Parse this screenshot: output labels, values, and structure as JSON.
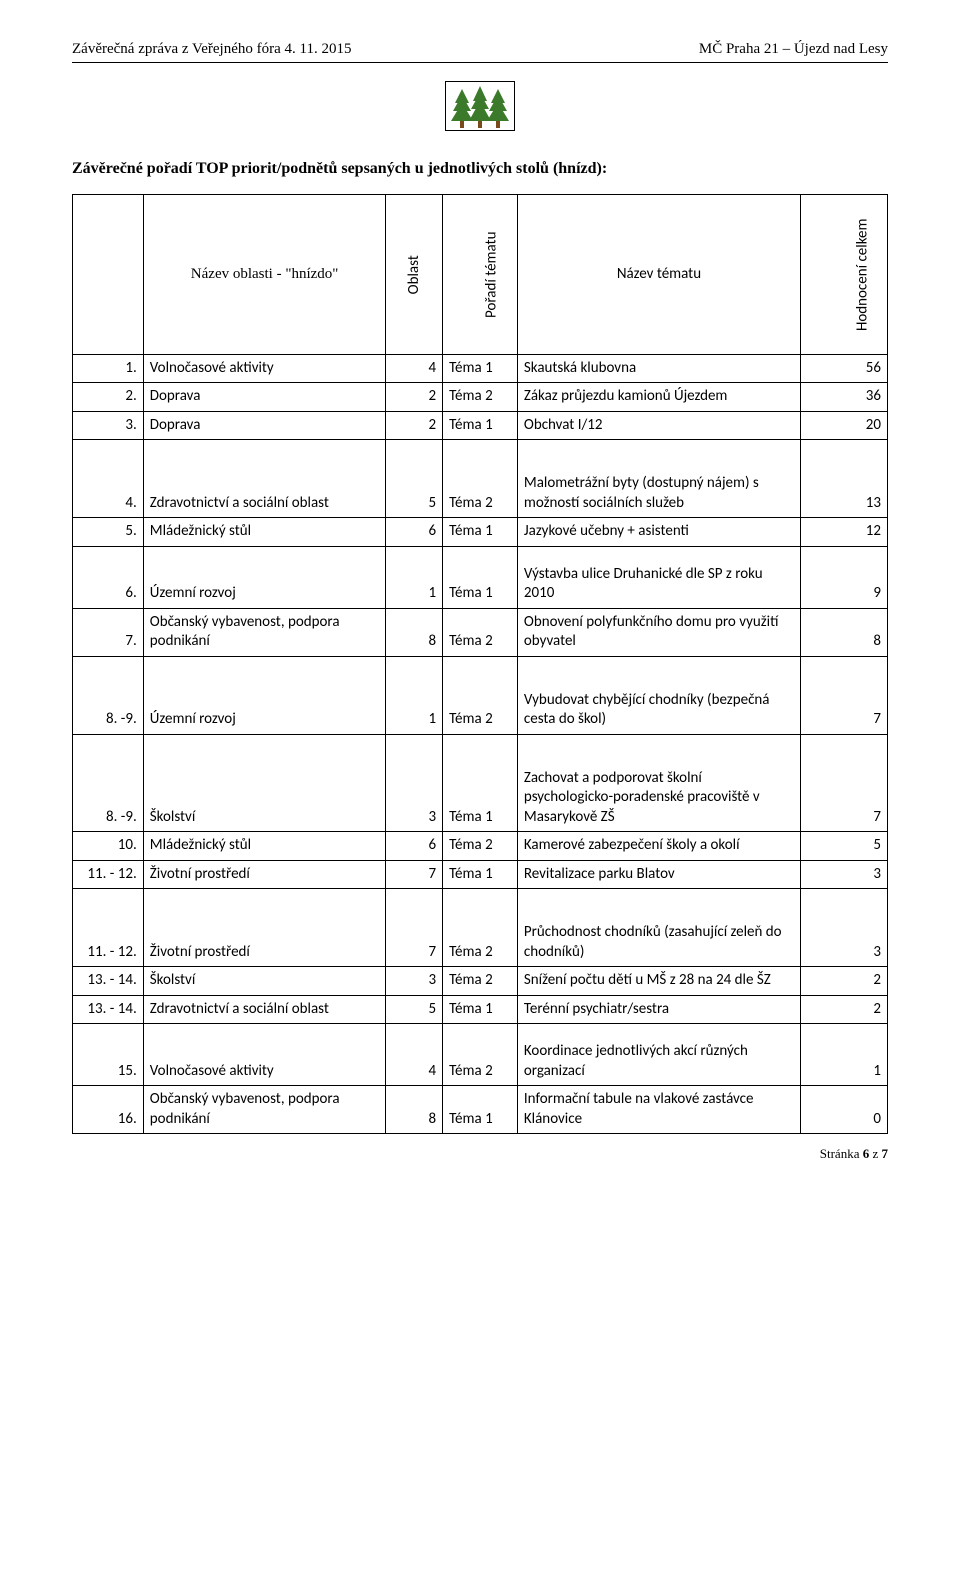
{
  "header": {
    "left": "Závěrečná zpráva z Veřejného fóra 4. 11. 2015",
    "right": "MČ Praha 21 – Újezd nad Lesy"
  },
  "title": "Závěrečné pořadí TOP priorit/podnětů sepsaných u jednotlivých stolů (hnízd):",
  "columns": {
    "name": "Název oblasti - \"hnízdo\"",
    "area": "Oblast",
    "topic_order": "Pořadí tématu",
    "topic_name": "Název tématu",
    "rating": "Hodnocení celkem"
  },
  "rows": [
    {
      "n": "1.",
      "name": "Volnočasové aktivity",
      "area": "4",
      "ord": "Téma 1",
      "topic": "Skautská klubovna",
      "rating": "56",
      "h": ""
    },
    {
      "n": "2.",
      "name": "Doprava",
      "area": "2",
      "ord": "Téma 2",
      "topic": "Zákaz průjezdu kamionů Újezdem",
      "rating": "36",
      "h": ""
    },
    {
      "n": "3.",
      "name": "Doprava",
      "area": "2",
      "ord": "Téma 1",
      "topic": "Obchvat I/12",
      "rating": "20",
      "h": ""
    },
    {
      "n": "4.",
      "name": "Zdravotnictví a sociální oblast",
      "area": "5",
      "ord": "Téma 2",
      "topic": "Malometrážní byty (dostupný nájem) s možností sociálních služeb",
      "rating": "13",
      "h": "tall"
    },
    {
      "n": "5.",
      "name": "Mládežnický stůl",
      "area": "6",
      "ord": "Téma 1",
      "topic": "Jazykové učebny + asistenti",
      "rating": "12",
      "h": ""
    },
    {
      "n": "6.",
      "name": "Územní rozvoj",
      "area": "1",
      "ord": "Téma 1",
      "topic": "Výstavba ulice Druhanické dle SP z roku 2010",
      "rating": "9",
      "h": "med"
    },
    {
      "n": "7.",
      "name": "Občanský vybavenost, podpora podnikání",
      "area": "8",
      "ord": "Téma 2",
      "topic": "Obnovení polyfunkčního domu pro využití obyvatel",
      "rating": "8",
      "h": ""
    },
    {
      "n": "8. -9.",
      "name": "Územní rozvoj",
      "area": "1",
      "ord": "Téma 2",
      "topic": "Vybudovat chybějící chodníky (bezpečná cesta do škol)",
      "rating": "7",
      "h": "tall"
    },
    {
      "n": "8. -9.",
      "name": "Školství",
      "area": "3",
      "ord": "Téma 1",
      "topic": "Zachovat a podporovat školní psychologicko-poradenské pracoviště v Masarykově ZŠ",
      "rating": "7",
      "h": "tall"
    },
    {
      "n": "10.",
      "name": "Mládežnický stůl",
      "area": "6",
      "ord": "Téma 2",
      "topic": "Kamerové zabezpečení školy a okolí",
      "rating": "5",
      "h": ""
    },
    {
      "n": "11. - 12.",
      "name": "Životní prostředí",
      "area": "7",
      "ord": "Téma 1",
      "topic": "Revitalizace parku Blatov",
      "rating": "3",
      "h": ""
    },
    {
      "n": "11. - 12.",
      "name": "Životní prostředí",
      "area": "7",
      "ord": "Téma 2",
      "topic": "Průchodnost chodníků (zasahující zeleň do chodníků)",
      "rating": "3",
      "h": "tall"
    },
    {
      "n": "13. - 14.",
      "name": "Školství",
      "area": "3",
      "ord": "Téma 2",
      "topic": "Snížení počtu dětí u MŠ z 28 na 24 dle ŠZ",
      "rating": "2",
      "h": ""
    },
    {
      "n": "13. - 14.",
      "name": "Zdravotnictví a sociální oblast",
      "area": "5",
      "ord": "Téma 1",
      "topic": "Terénní psychiatr/sestra",
      "rating": "2",
      "h": ""
    },
    {
      "n": "15.",
      "name": "Volnočasové aktivity",
      "area": "4",
      "ord": "Téma 2",
      "topic": "Koordinace jednotlivých akcí různých organizací",
      "rating": "1",
      "h": "med"
    },
    {
      "n": "16.",
      "name": "Občanský vybavenost, podpora podnikání",
      "area": "8",
      "ord": "Téma 1",
      "topic": "Informační tabule na vlakové zastávce Klánovice",
      "rating": "0",
      "h": ""
    }
  ],
  "footer": {
    "label": "Stránka ",
    "page": "6",
    "of_label": " z ",
    "total": "7"
  },
  "logo": {
    "tree_color": "#3b7a2a",
    "trunk_color": "#7a4a1a",
    "border_color": "#000000"
  }
}
